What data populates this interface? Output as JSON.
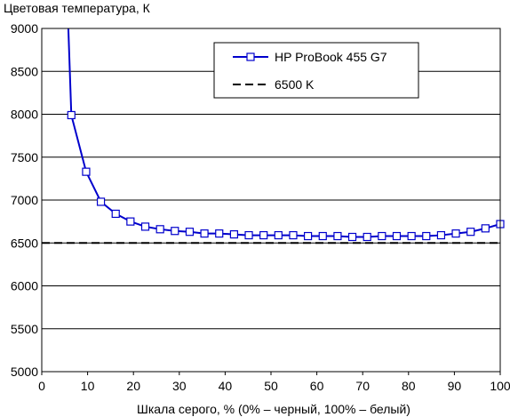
{
  "chart_data": {
    "type": "line",
    "title": "",
    "ylabel": "Цветовая температура, К",
    "xlabel": "Шкала серого, % (0% – черный, 100% – белый)",
    "xlim": [
      0,
      100
    ],
    "ylim": [
      5000,
      9000
    ],
    "xticks": [
      0,
      10,
      20,
      30,
      40,
      50,
      60,
      70,
      80,
      90,
      100
    ],
    "yticks": [
      5000,
      5500,
      6000,
      6500,
      7000,
      7500,
      8000,
      8500,
      9000
    ],
    "grid": "horizontal",
    "legend_position": "top-right",
    "series": [
      {
        "name": "HP ProBook 455 G7",
        "color": "#0000cc",
        "marker": "open-square",
        "x": [
          6.45,
          9.68,
          12.9,
          16.13,
          19.35,
          22.58,
          25.81,
          29.03,
          32.26,
          35.48,
          38.71,
          41.94,
          45.16,
          48.39,
          51.61,
          54.84,
          58.06,
          61.29,
          64.52,
          67.74,
          70.97,
          74.19,
          77.42,
          80.65,
          83.87,
          87.1,
          90.32,
          93.55,
          96.77,
          100
        ],
        "y": [
          7990,
          7330,
          6980,
          6840,
          6750,
          6690,
          6660,
          6640,
          6630,
          6610,
          6610,
          6600,
          6590,
          6590,
          6590,
          6590,
          6580,
          6580,
          6580,
          6570,
          6570,
          6580,
          6580,
          6580,
          6580,
          6590,
          6610,
          6630,
          6670,
          6720
        ]
      },
      {
        "name": "6500 K",
        "color": "#000000",
        "style": "dashed",
        "x": [
          0,
          100
        ],
        "y": [
          6500,
          6500
        ]
      }
    ]
  }
}
